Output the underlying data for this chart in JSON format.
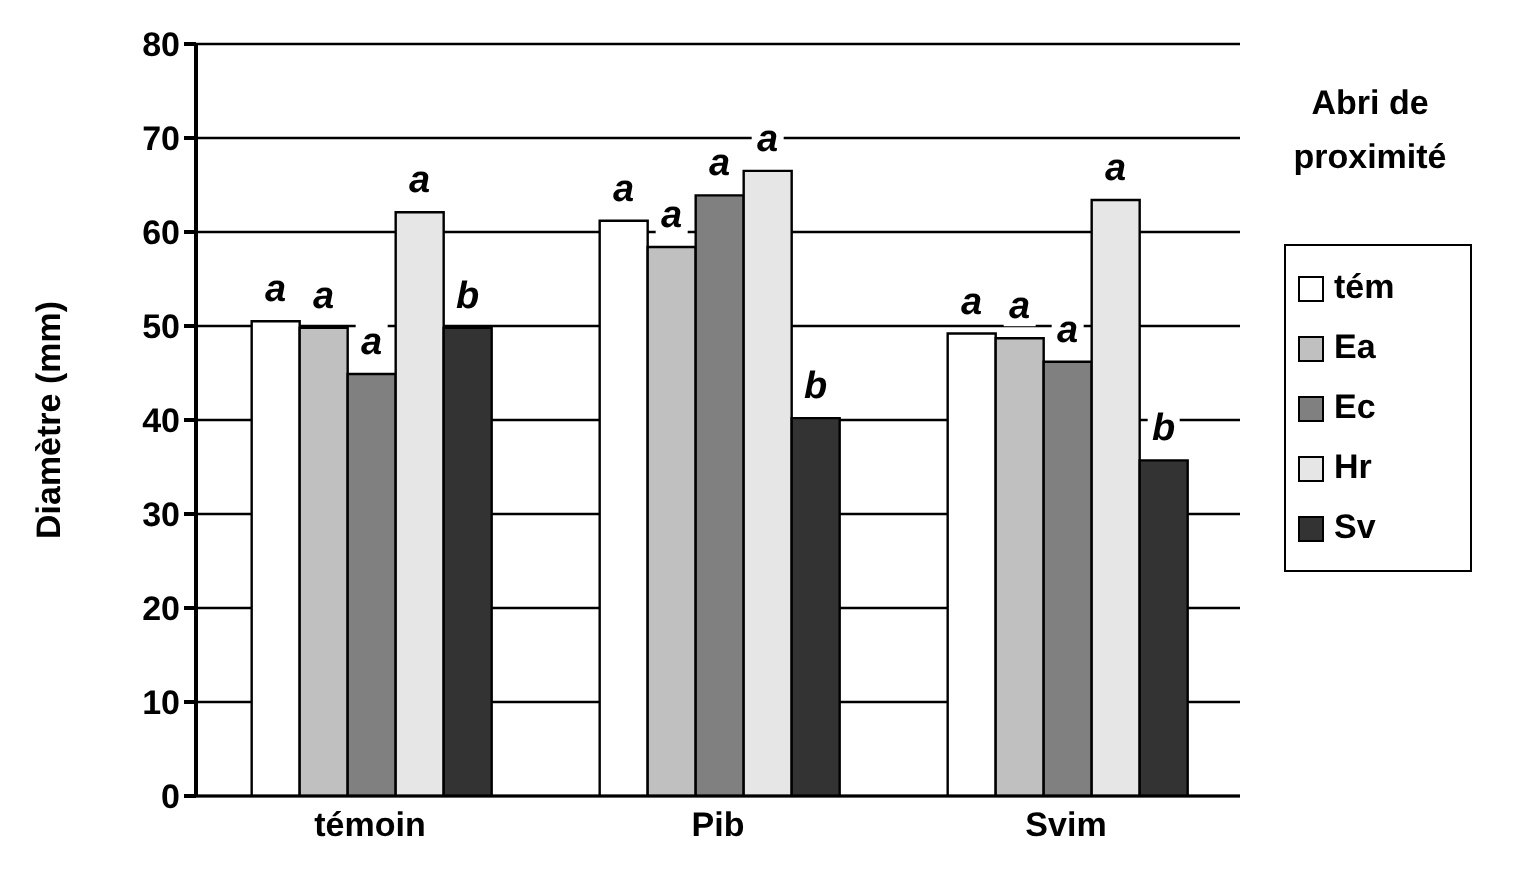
{
  "chart_data": {
    "type": "bar",
    "ylabel": "Diamètre (mm)",
    "legend_title": "Abri de proximité",
    "categories": [
      "témoin",
      "Pib",
      "Svim"
    ],
    "series": [
      {
        "name": "tém",
        "color": "#ffffff",
        "values": [
          50.5,
          61.2,
          49.2
        ],
        "value_labels": [
          "a",
          "a",
          "a"
        ]
      },
      {
        "name": "Ea",
        "color": "#c0c0c0",
        "values": [
          49.8,
          58.4,
          48.7
        ],
        "value_labels": [
          "a",
          "a",
          "a"
        ]
      },
      {
        "name": "Ec",
        "color": "#808080",
        "values": [
          44.9,
          63.9,
          46.2
        ],
        "value_labels": [
          "a",
          "a",
          "a"
        ]
      },
      {
        "name": "Hr",
        "color": "#e6e6e6",
        "values": [
          62.1,
          66.5,
          63.4
        ],
        "value_labels": [
          "a",
          "a",
          "a"
        ]
      },
      {
        "name": "Sv",
        "color": "#333333",
        "values": [
          49.8,
          40.2,
          35.7
        ],
        "value_labels": [
          "b",
          "b",
          "b"
        ]
      }
    ],
    "ylim": [
      0,
      80
    ],
    "yticks": [
      0,
      10,
      20,
      30,
      40,
      50,
      60,
      70,
      80
    ],
    "grid": "y",
    "legend": "right"
  }
}
